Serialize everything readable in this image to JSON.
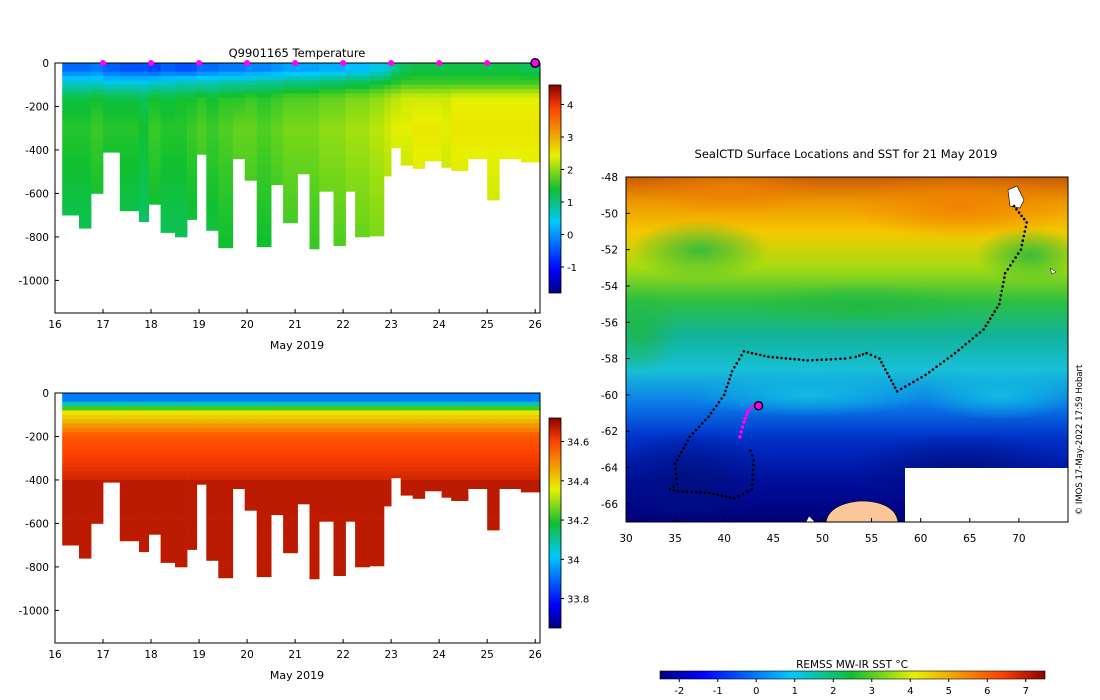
{
  "chart_data": [
    {
      "id": "temperature",
      "type": "heatmap",
      "title": "Q9901165  Temperature",
      "xlabel": "May 2019",
      "xlim": [
        16,
        26.1
      ],
      "ylim": [
        -1150,
        0
      ],
      "xticks": [
        16,
        17,
        18,
        19,
        20,
        21,
        22,
        23,
        24,
        25,
        26
      ],
      "yticks": [
        0,
        -200,
        -400,
        -600,
        -800,
        -1000
      ],
      "colorbar": {
        "min": -1.8,
        "max": 4.6,
        "ticks": [
          -1,
          0,
          1,
          2,
          3,
          4
        ]
      },
      "profile_days": [
        17,
        18,
        19,
        20,
        21,
        22,
        23,
        24,
        25
      ],
      "end_marker_day": 26,
      "profiles": [
        {
          "x0": 16.15,
          "x1": 16.5,
          "max_depth": 700,
          "temps": [
            -0.3,
            0.6,
            1.3,
            1.5
          ]
        },
        {
          "x0": 16.5,
          "x1": 16.75,
          "max_depth": 760,
          "temps": [
            -0.3,
            0.6,
            1.3,
            1.5
          ]
        },
        {
          "x0": 16.75,
          "x1": 17.0,
          "max_depth": 600,
          "temps": [
            -0.2,
            0.6,
            1.4,
            1.6
          ]
        },
        {
          "x0": 17.0,
          "x1": 17.35,
          "max_depth": 410,
          "temps": [
            -0.4,
            0.5,
            1.3,
            1.5
          ]
        },
        {
          "x0": 17.35,
          "x1": 17.75,
          "max_depth": 680,
          "temps": [
            -0.5,
            0.5,
            1.3,
            1.5
          ]
        },
        {
          "x0": 17.75,
          "x1": 17.95,
          "max_depth": 730,
          "temps": [
            -0.5,
            0.5,
            1.2,
            1.4
          ]
        },
        {
          "x0": 17.95,
          "x1": 18.2,
          "max_depth": 650,
          "temps": [
            -0.6,
            0.6,
            1.4,
            1.6
          ]
        },
        {
          "x0": 18.2,
          "x1": 18.5,
          "max_depth": 780,
          "temps": [
            -0.4,
            0.6,
            1.3,
            1.5
          ]
        },
        {
          "x0": 18.5,
          "x1": 18.75,
          "max_depth": 800,
          "temps": [
            -0.5,
            0.7,
            1.4,
            1.5
          ]
        },
        {
          "x0": 18.75,
          "x1": 18.95,
          "max_depth": 720,
          "temps": [
            -0.5,
            0.7,
            1.4,
            1.6
          ]
        },
        {
          "x0": 18.95,
          "x1": 19.15,
          "max_depth": 420,
          "temps": [
            -0.3,
            0.7,
            1.5,
            1.7
          ]
        },
        {
          "x0": 19.15,
          "x1": 19.4,
          "max_depth": 770,
          "temps": [
            -0.3,
            0.7,
            1.4,
            1.6
          ]
        },
        {
          "x0": 19.4,
          "x1": 19.7,
          "max_depth": 850,
          "temps": [
            -0.2,
            0.8,
            1.5,
            1.7
          ]
        },
        {
          "x0": 19.7,
          "x1": 19.95,
          "max_depth": 440,
          "temps": [
            -0.2,
            0.8,
            1.5,
            1.8
          ]
        },
        {
          "x0": 19.95,
          "x1": 20.2,
          "max_depth": 540,
          "temps": [
            -0.1,
            0.8,
            1.6,
            1.8
          ]
        },
        {
          "x0": 20.2,
          "x1": 20.5,
          "max_depth": 845,
          "temps": [
            -0.1,
            0.9,
            1.5,
            1.7
          ]
        },
        {
          "x0": 20.5,
          "x1": 20.75,
          "max_depth": 560,
          "temps": [
            0.0,
            0.9,
            1.6,
            1.8
          ]
        },
        {
          "x0": 20.75,
          "x1": 21.05,
          "max_depth": 735,
          "temps": [
            0.1,
            1.0,
            1.7,
            1.9
          ]
        },
        {
          "x0": 21.05,
          "x1": 21.3,
          "max_depth": 510,
          "temps": [
            0.1,
            1.0,
            1.7,
            1.9
          ]
        },
        {
          "x0": 21.3,
          "x1": 21.5,
          "max_depth": 855,
          "temps": [
            0.1,
            1.0,
            1.7,
            1.9
          ]
        },
        {
          "x0": 21.5,
          "x1": 21.8,
          "max_depth": 590,
          "temps": [
            0.2,
            1.1,
            1.8,
            2.0
          ]
        },
        {
          "x0": 21.8,
          "x1": 22.05,
          "max_depth": 840,
          "temps": [
            0.2,
            1.1,
            1.8,
            2.0
          ]
        },
        {
          "x0": 22.05,
          "x1": 22.25,
          "max_depth": 590,
          "temps": [
            0.3,
            1.2,
            1.9,
            2.1
          ]
        },
        {
          "x0": 22.25,
          "x1": 22.55,
          "max_depth": 800,
          "temps": [
            0.3,
            1.2,
            1.9,
            2.1
          ]
        },
        {
          "x0": 22.55,
          "x1": 22.85,
          "max_depth": 795,
          "temps": [
            0.5,
            1.3,
            2.0,
            2.2
          ]
        },
        {
          "x0": 22.85,
          "x1": 23.0,
          "max_depth": 520,
          "temps": [
            0.6,
            1.4,
            2.1,
            2.3
          ]
        },
        {
          "x0": 23.0,
          "x1": 23.2,
          "max_depth": 390,
          "temps": [
            1.0,
            1.5,
            2.2,
            2.4
          ]
        },
        {
          "x0": 23.2,
          "x1": 23.45,
          "max_depth": 470,
          "temps": [
            1.2,
            1.6,
            2.3,
            2.4
          ]
        },
        {
          "x0": 23.45,
          "x1": 23.7,
          "max_depth": 485,
          "temps": [
            1.3,
            1.6,
            2.3,
            2.5
          ]
        },
        {
          "x0": 23.7,
          "x1": 24.05,
          "max_depth": 450,
          "temps": [
            1.3,
            1.6,
            2.3,
            2.5
          ]
        },
        {
          "x0": 24.05,
          "x1": 24.25,
          "max_depth": 480,
          "temps": [
            1.3,
            1.6,
            2.3,
            2.4
          ]
        },
        {
          "x0": 24.25,
          "x1": 24.6,
          "max_depth": 495,
          "temps": [
            1.3,
            1.6,
            2.4,
            2.5
          ]
        },
        {
          "x0": 24.6,
          "x1": 25.0,
          "max_depth": 440,
          "temps": [
            1.3,
            1.6,
            2.4,
            2.5
          ]
        },
        {
          "x0": 25.0,
          "x1": 25.25,
          "max_depth": 630,
          "temps": [
            1.3,
            1.6,
            2.4,
            2.5
          ]
        },
        {
          "x0": 25.25,
          "x1": 25.7,
          "max_depth": 440,
          "temps": [
            1.3,
            1.6,
            2.4,
            2.5
          ]
        },
        {
          "x0": 25.7,
          "x1": 26.1,
          "max_depth": 455,
          "temps": [
            1.2,
            1.6,
            2.4,
            2.5
          ]
        }
      ]
    },
    {
      "id": "salinity",
      "type": "heatmap",
      "title": "",
      "xlabel": "May 2019",
      "xlim": [
        16,
        26.1
      ],
      "ylim": [
        -1150,
        0
      ],
      "xticks": [
        16,
        17,
        18,
        19,
        20,
        21,
        22,
        23,
        24,
        25,
        26
      ],
      "yticks": [
        0,
        -200,
        -400,
        -600,
        -800,
        -1000
      ],
      "colorbar": {
        "min": 33.65,
        "max": 34.72,
        "ticks": [
          33.8,
          34,
          34.2,
          34.4,
          34.6
        ]
      }
    },
    {
      "id": "map",
      "type": "heatmap",
      "title": "SealCTD Surface Locations and SST for 21 May 2019",
      "xlim": [
        30,
        75
      ],
      "ylim": [
        -67,
        -48
      ],
      "xticks": [
        30,
        35,
        40,
        45,
        50,
        55,
        60,
        65,
        70
      ],
      "yticks": [
        -48,
        -50,
        -52,
        -54,
        -56,
        -58,
        -60,
        -62,
        -64,
        -66
      ],
      "colorbar": {
        "title": "REMSS MW-IR SST °C",
        "min": -2.5,
        "max": 7.5,
        "ticks": [
          -2,
          -1,
          0,
          1,
          2,
          3,
          4,
          5,
          6,
          7
        ]
      },
      "track_black": [
        [
          69.5,
          -49.6
        ],
        [
          70.8,
          -50.5
        ],
        [
          70.2,
          -52.0
        ],
        [
          68.6,
          -53.3
        ],
        [
          68.0,
          -55.0
        ],
        [
          66.4,
          -56.4
        ],
        [
          63.5,
          -57.7
        ],
        [
          60.5,
          -58.9
        ],
        [
          57.6,
          -59.8
        ],
        [
          56.6,
          -58.8
        ],
        [
          55.8,
          -58.0
        ],
        [
          54.5,
          -57.7
        ],
        [
          53.4,
          -57.9
        ],
        [
          52.3,
          -58.0
        ],
        [
          48.5,
          -58.1
        ],
        [
          44.5,
          -57.9
        ],
        [
          42.0,
          -57.6
        ],
        [
          40.8,
          -58.7
        ],
        [
          40.0,
          -60.0
        ],
        [
          38.4,
          -61.2
        ],
        [
          36.5,
          -62.3
        ],
        [
          35.0,
          -63.8
        ],
        [
          35.2,
          -64.9
        ],
        [
          34.5,
          -65.2
        ],
        [
          35.3,
          -65.3
        ],
        [
          38.5,
          -65.4
        ],
        [
          41.0,
          -65.7
        ],
        [
          42.8,
          -65.2
        ],
        [
          43.0,
          -63.6
        ],
        [
          42.5,
          -62.8
        ]
      ],
      "track_magenta": [
        [
          41.6,
          -62.3
        ],
        [
          42.0,
          -61.5
        ],
        [
          42.4,
          -60.9
        ],
        [
          43.0,
          -60.6
        ],
        [
          43.5,
          -60.6
        ]
      ],
      "current_position": [
        43.5,
        -60.6
      ],
      "copyright": "© IMOS 17-May-2022 17:59 Hobart"
    }
  ]
}
